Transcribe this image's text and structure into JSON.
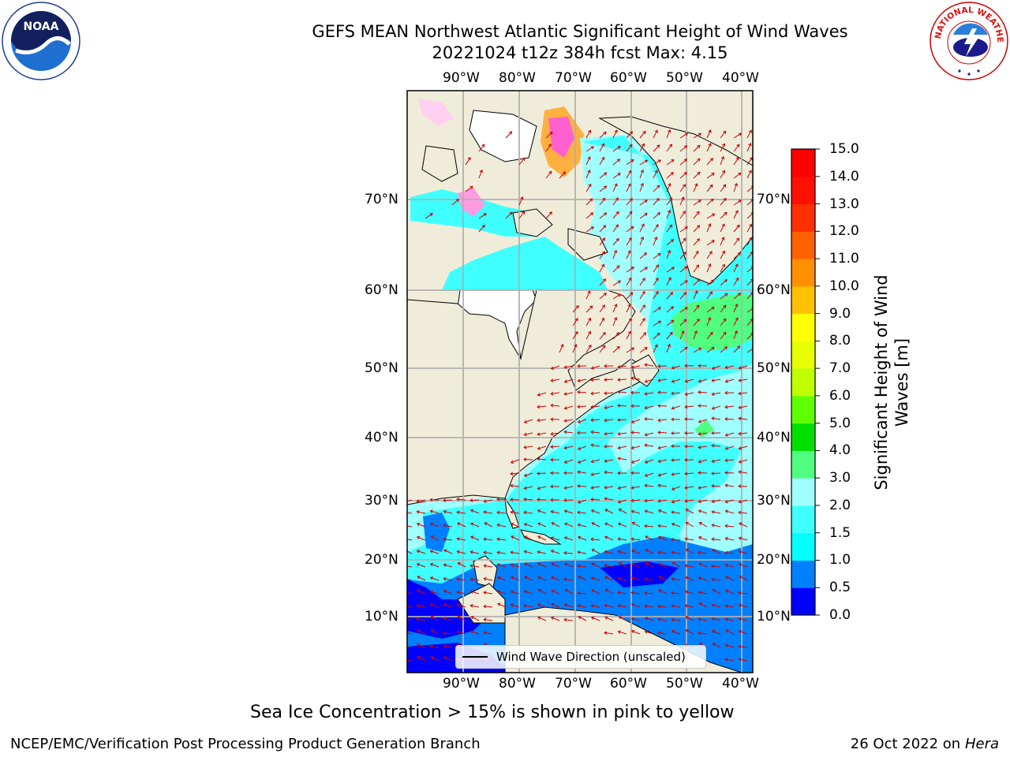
{
  "title": {
    "line1": "GEFS MEAN Northwest Atlantic Significant Height of Wind Waves",
    "line2": "20221024 t12z 384h fcst   Max: 4.15"
  },
  "map": {
    "lon_labels": [
      "90°W",
      "80°W",
      "70°W",
      "60°W",
      "50°W",
      "40°W"
    ],
    "lat_labels": [
      "70°N",
      "60°N",
      "50°N",
      "40°N",
      "30°N",
      "20°N",
      "10°N"
    ],
    "legend": "Wind Wave Direction (unscaled)",
    "colors": {
      "land": "#efedda",
      "ice_free_white": "#ffffff",
      "grid": "#b0b0b0",
      "arrows": "#cc0000"
    }
  },
  "colorbar": {
    "label_line1": "Significant Height of Wind",
    "label_line2": "Waves [m]",
    "ticks": [
      "0.0",
      "0.5",
      "1.0",
      "1.5",
      "2.0",
      "3.0",
      "4.0",
      "5.0",
      "6.0",
      "7.0",
      "8.0",
      "9.0",
      "10.0",
      "11.0",
      "12.0",
      "13.0",
      "14.0",
      "15.0"
    ],
    "colors": [
      "#0000ff",
      "#0080ff",
      "#00ffff",
      "#40ffff",
      "#a0ffff",
      "#50ff80",
      "#00e000",
      "#60ff00",
      "#c0ff00",
      "#e8ff00",
      "#ffff00",
      "#ffc000",
      "#ff9000",
      "#ff6000",
      "#ff3000",
      "#ff1000",
      "#ff0000"
    ]
  },
  "footer": {
    "note": "Sea Ice Concentration > 15% is shown in pink to yellow",
    "credit_left": "NCEP/EMC/Verification Post Processing Product Generation Branch",
    "credit_right_date": "26 Oct 2022 on ",
    "credit_right_host": "Hera"
  },
  "logos": {
    "noaa": "NOAA",
    "nws": "NATIONAL WEATHER SERVICE"
  }
}
